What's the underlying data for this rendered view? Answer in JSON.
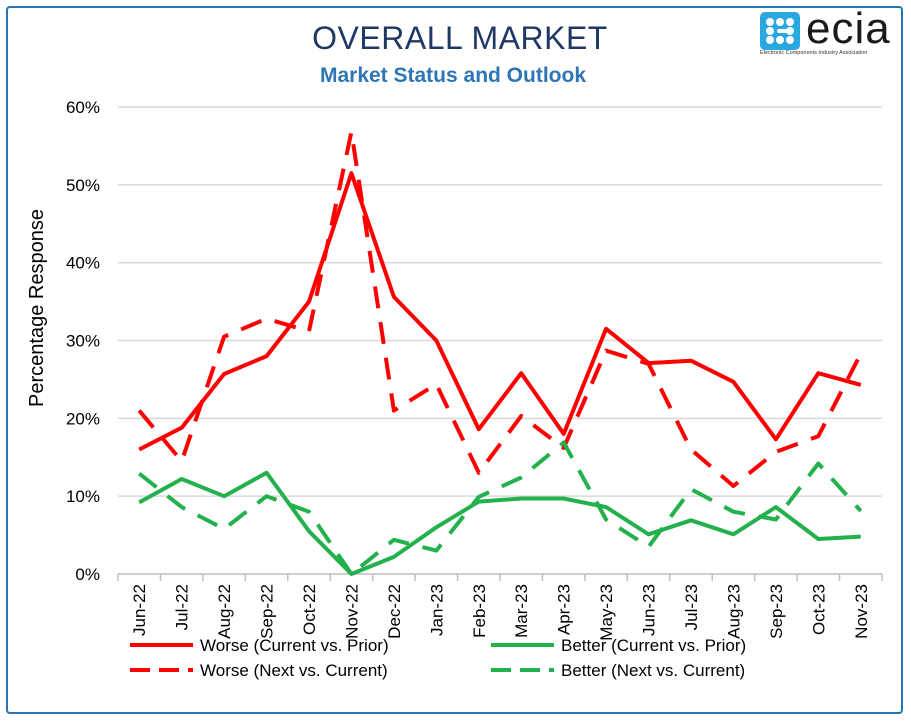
{
  "header": {
    "title": "OVERALL MARKET",
    "subtitle": "Market Status and Outlook",
    "logo_word": "ecia",
    "logo_tagline": "Electronic Components Industry Association",
    "logo_icon": "ecia-logo-icon"
  },
  "colors": {
    "worse": "#ff0000",
    "better": "#22b14c",
    "grid": "#d9d9d9",
    "frame": "#1f77b4",
    "title": "#1f3864",
    "subtitle": "#2e75b6"
  },
  "chart_data": {
    "type": "line",
    "title": "OVERALL MARKET",
    "subtitle": "Market Status and Outlook",
    "xlabel": "",
    "ylabel": "Percentage Response",
    "ylim": [
      0,
      60
    ],
    "yticks": [
      "0%",
      "10%",
      "20%",
      "30%",
      "40%",
      "50%",
      "60%"
    ],
    "grid": true,
    "legend_position": "bottom",
    "categories": [
      "Jun-22",
      "Jul-22",
      "Aug-22",
      "Sep-22",
      "Oct-22",
      "Nov-22",
      "Dec-22",
      "Jan-23",
      "Feb-23",
      "Mar-23",
      "Apr-23",
      "May-23",
      "Jun-23",
      "Jul-23",
      "Aug-23",
      "Sep-23",
      "Oct-23",
      "Nov-23"
    ],
    "series": [
      {
        "name": "Worse (Current vs. Prior)",
        "style": "solid",
        "color": "#ff0000",
        "values": [
          16.0,
          18.8,
          25.7,
          28.0,
          35.0,
          51.5,
          35.6,
          30.0,
          18.6,
          25.8,
          18.0,
          31.5,
          27.1,
          27.4,
          24.7,
          17.3,
          25.8,
          24.3
        ]
      },
      {
        "name": "Worse (Next vs. Current)",
        "style": "dashed",
        "color": "#ff0000",
        "values": [
          21.0,
          14.5,
          30.5,
          32.8,
          31.2,
          56.8,
          21.0,
          24.4,
          13.0,
          20.3,
          16.2,
          28.7,
          27.0,
          16.0,
          11.3,
          15.7,
          17.7,
          28.3
        ]
      },
      {
        "name": "Better (Current vs. Prior)",
        "style": "solid",
        "color": "#22b14c",
        "values": [
          9.2,
          12.2,
          10.0,
          13.0,
          5.5,
          0.0,
          2.2,
          6.0,
          9.3,
          9.7,
          9.7,
          8.6,
          5.1,
          6.9,
          5.1,
          8.6,
          4.5,
          4.8
        ]
      },
      {
        "name": "Better (Next vs. Current)",
        "style": "dashed",
        "color": "#22b14c",
        "values": [
          12.9,
          8.6,
          5.8,
          10.0,
          8.0,
          0.0,
          4.4,
          3.0,
          9.9,
          12.4,
          16.9,
          7.0,
          3.5,
          10.9,
          8.0,
          7.0,
          14.2,
          8.1
        ]
      }
    ]
  }
}
